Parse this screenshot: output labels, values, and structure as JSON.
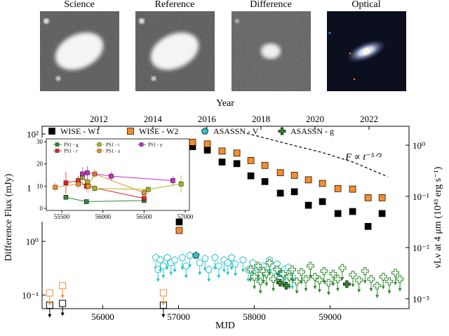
{
  "panels": [
    {
      "title": "Science"
    },
    {
      "title": "Reference"
    },
    {
      "title": "Difference"
    },
    {
      "title": "Optical"
    }
  ],
  "chart_data": [
    {
      "type": "scatter",
      "xlabel": "MJD",
      "ylabel": "Difference Flux (mJy)",
      "x2label": "Year",
      "y2label": "νLν at 4 μm (10⁴³ erg s⁻¹)",
      "xlim": [
        55200,
        60040
      ],
      "xticks": [
        56000,
        57000,
        58000,
        59000
      ],
      "ylim": [
        0.056,
        139
      ],
      "log_y": true,
      "yticks": [
        {
          "value": 0.1,
          "label": "10⁻¹"
        },
        {
          "value": 1,
          "label": "10⁰"
        },
        {
          "value": 10,
          "label": "10¹"
        },
        {
          "value": 100,
          "label": "10²"
        }
      ],
      "x2lim": [
        2009.9,
        2023.48
      ],
      "x2ticks": [
        2012,
        2014,
        2016,
        2018,
        2020,
        2022
      ],
      "y2lim": [
        0.00064,
        2.34
      ],
      "y2ticks": [
        {
          "value": 0.001,
          "label": "10⁻³"
        },
        {
          "value": 0.01,
          "label": "10⁻²"
        },
        {
          "value": 0.1,
          "label": "10⁻¹"
        },
        {
          "value": 1,
          "label": "10⁰"
        }
      ],
      "series": [
        {
          "name": "WISE - W1",
          "color": "#000000",
          "marker": "square",
          "x": [
            55300,
            55470,
            56800,
            57009,
            57185,
            57380,
            57574,
            57769,
            57954,
            58139,
            58343,
            58528,
            58713,
            58898,
            59102,
            59296,
            59500,
            59685
          ],
          "values": [
            0.065,
            0.07,
            0.065,
            2.3,
            58,
            50,
            30,
            28,
            16.6,
            13,
            7.9,
            8.4,
            4.7,
            5.5,
            3.3,
            3.6,
            1.9,
            3.3
          ],
          "upper_limits": [
            true,
            true,
            true,
            false,
            false,
            false,
            false,
            false,
            false,
            false,
            false,
            false,
            false,
            false,
            false,
            false,
            false,
            false
          ]
        },
        {
          "name": "WISE - W2",
          "color": "#f28e2b",
          "marker": "square",
          "x": [
            55300,
            55470,
            56800,
            57009,
            57185,
            57380,
            57574,
            57769,
            57954,
            58139,
            58343,
            58528,
            58713,
            58898,
            59102,
            59296,
            59500,
            59685
          ],
          "values": [
            0.11,
            0.15,
            0.11,
            1.6,
            70,
            65,
            48,
            44,
            32,
            26,
            19,
            17,
            14,
            12,
            9.6,
            9.4,
            6.5,
            6.5
          ],
          "upper_limits": [
            true,
            true,
            true,
            false,
            false,
            false,
            false,
            false,
            false,
            false,
            false,
            false,
            false,
            false,
            false,
            false,
            false,
            false
          ]
        },
        {
          "name": "ASASSN - V",
          "color": "#2ec4c8",
          "marker": "pentagon",
          "x": [
            56700,
            56730,
            56760,
            56800,
            56850,
            56900,
            56950,
            57050,
            57100,
            57150,
            57230,
            57280,
            57350,
            57400,
            57480,
            57530,
            57600,
            57650,
            57700,
            57750,
            57850,
            57920,
            57980,
            58050,
            58120,
            58200,
            58260,
            58300,
            58350,
            58400,
            58450,
            58500
          ],
          "values": [
            0.5,
            0.3,
            0.45,
            0.35,
            0.5,
            0.4,
            0.45,
            0.5,
            0.35,
            0.55,
            0.55,
            0.4,
            0.48,
            0.3,
            0.5,
            0.35,
            0.45,
            0.4,
            0.5,
            0.38,
            0.45,
            0.3,
            0.4,
            0.3,
            0.35,
            0.45,
            0.28,
            0.38,
            0.25,
            0.3,
            0.33,
            0.22
          ],
          "upper_limits": [
            true,
            true,
            true,
            true,
            true,
            true,
            true,
            true,
            true,
            true,
            false,
            true,
            true,
            true,
            true,
            true,
            true,
            true,
            true,
            true,
            true,
            true,
            true,
            true,
            true,
            true,
            true,
            true,
            false,
            true,
            true,
            true
          ]
        },
        {
          "name": "ASASSN - g",
          "color": "#2e8b2e",
          "marker": "plus",
          "x": [
            57950,
            58000,
            58050,
            58080,
            58120,
            58160,
            58200,
            58250,
            58300,
            58340,
            58380,
            58420,
            58460,
            58500,
            58560,
            58620,
            58680,
            58740,
            58800,
            58860,
            58920,
            58980,
            59040,
            59100,
            59160,
            59220,
            59300,
            59380,
            59460,
            59540,
            59620,
            59700,
            59780,
            59860,
            59920
          ],
          "values": [
            0.3,
            0.22,
            0.35,
            0.18,
            0.28,
            0.25,
            0.4,
            0.2,
            0.3,
            0.17,
            0.25,
            0.15,
            0.22,
            0.3,
            0.18,
            0.27,
            0.2,
            0.35,
            0.22,
            0.19,
            0.28,
            0.17,
            0.25,
            0.2,
            0.32,
            0.16,
            0.24,
            0.19,
            0.28,
            0.2,
            0.15,
            0.22,
            0.18,
            0.26,
            0.2
          ],
          "upper_limits": [
            true,
            true,
            true,
            true,
            true,
            true,
            true,
            true,
            true,
            false,
            true,
            false,
            true,
            true,
            true,
            true,
            true,
            true,
            true,
            true,
            true,
            true,
            true,
            true,
            true,
            false,
            true,
            true,
            true,
            true,
            true,
            true,
            true,
            true,
            true
          ]
        }
      ],
      "fit": {
        "label": "F ∝ t⁻⁵ᐟ³",
        "color": "#000000",
        "x": [
          57900,
          58200,
          58540,
          58900,
          59300,
          59760
        ],
        "values": [
          103,
          80,
          60,
          45,
          30,
          16
        ]
      }
    },
    {
      "type": "scatter",
      "xlim": [
        55312,
        57051
      ],
      "xticks": [
        55500,
        56000,
        56500,
        57000
      ],
      "ylim": [
        -0.95,
        31.3
      ],
      "yticks": [
        0,
        10,
        20,
        30
      ],
      "series": [
        {
          "name": "PS1 - g",
          "color": "#2e8b2e",
          "x": [
            55550,
            55800,
            56500
          ],
          "values": [
            5,
            3,
            3.5
          ],
          "errors": [
            1,
            0.8,
            0.8
          ]
        },
        {
          "name": "PS1 - r",
          "color": "#e02020",
          "x": [
            55550,
            55700,
            55800,
            56500
          ],
          "values": [
            11.5,
            12.5,
            10,
            4.5
          ],
          "errors": [
            5,
            2,
            2,
            1.5
          ]
        },
        {
          "name": "PS1 - i",
          "color": "#a8b820",
          "x": [
            55750,
            55810,
            55900,
            56550,
            56950
          ],
          "values": [
            14,
            12,
            9,
            8.5,
            11
          ],
          "errors": [
            2,
            2,
            1.5,
            1.5,
            4
          ]
        },
        {
          "name": "PS1 - z",
          "color": "#f28e2b",
          "x": [
            55420,
            55700,
            55820,
            55900,
            56500
          ],
          "values": [
            9.5,
            11,
            10,
            15.5,
            7
          ],
          "errors": [
            2,
            2,
            3,
            2,
            2
          ]
        },
        {
          "name": "PS1 - y",
          "color": "#c030c0",
          "x": [
            55750,
            55810,
            56100,
            56850
          ],
          "values": [
            15.5,
            16,
            14.5,
            12.5
          ],
          "errors": [
            3,
            3,
            2,
            2
          ]
        }
      ]
    }
  ]
}
